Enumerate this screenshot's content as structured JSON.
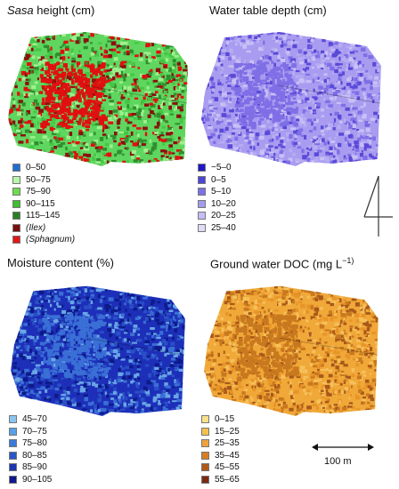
{
  "panels": [
    {
      "id": "sasa",
      "title_pre": "",
      "title_italic": "Sasa",
      "title_post": " height (cm)",
      "base_color": "#5fd65f",
      "patch_colors": [
        "#2f8f2f",
        "#9ef08e",
        "#e01010",
        "#43c743",
        "#8a1010"
      ],
      "legend": [
        {
          "label": "0–50",
          "color": "#1f6fd1",
          "italic": false
        },
        {
          "label": "50–75",
          "color": "#b6f7a8",
          "italic": false
        },
        {
          "label": "75–90",
          "color": "#6fdc4f",
          "italic": false
        },
        {
          "label": "90–115",
          "color": "#3fbf2f",
          "italic": false
        },
        {
          "label": "115–145",
          "color": "#2a7f24",
          "italic": false
        },
        {
          "label": "(Ilex)",
          "color": "#7a0f0f",
          "italic": true
        },
        {
          "label": "(Sphagnum)",
          "color": "#e01818",
          "italic": true
        }
      ]
    },
    {
      "id": "water-table",
      "title_pre": "Water table depth (cm)",
      "title_italic": "",
      "title_post": "",
      "base_color": "#a99cf0",
      "patch_colors": [
        "#7f6fe6",
        "#c8c0f6",
        "#5a4ad8",
        "#b6acf2"
      ],
      "legend": [
        {
          "label": "−5–0",
          "color": "#2216c8",
          "italic": false
        },
        {
          "label": "0–5",
          "color": "#4e44d6",
          "italic": false
        },
        {
          "label": "5–10",
          "color": "#7b72e4",
          "italic": false
        },
        {
          "label": "10–20",
          "color": "#a39cee",
          "italic": false
        },
        {
          "label": "20–25",
          "color": "#c3bef4",
          "italic": false
        },
        {
          "label": "25–40",
          "color": "#dedcf8",
          "italic": false
        }
      ]
    },
    {
      "id": "moisture",
      "title_pre": "Moisture content (%)",
      "title_italic": "",
      "title_post": "",
      "base_color": "#1d2fb8",
      "patch_colors": [
        "#3a6fd6",
        "#0c1a8a",
        "#6aa6e6",
        "#2a4fc8"
      ],
      "legend": [
        {
          "label": "45–70",
          "color": "#8cc4ee",
          "italic": false
        },
        {
          "label": "70–75",
          "color": "#5aa0e4",
          "italic": false
        },
        {
          "label": "75–80",
          "color": "#3a7ad8",
          "italic": false
        },
        {
          "label": "80–85",
          "color": "#2a56c6",
          "italic": false
        },
        {
          "label": "85–90",
          "color": "#1e36b0",
          "italic": false
        },
        {
          "label": "90–105",
          "color": "#10188a",
          "italic": false
        }
      ]
    },
    {
      "id": "doc",
      "title_pre": "Ground water DOC (mg L",
      "title_italic": "",
      "title_post": "−1)",
      "base_color": "#f0a838",
      "patch_colors": [
        "#c8781e",
        "#f6c05a",
        "#a8581a",
        "#e89428"
      ],
      "legend": [
        {
          "label": "0–15",
          "color": "#fce08a",
          "italic": false
        },
        {
          "label": "15–25",
          "color": "#f6c04c",
          "italic": false
        },
        {
          "label": "25–35",
          "color": "#eea43a",
          "italic": false
        },
        {
          "label": "35–45",
          "color": "#d67e24",
          "italic": false
        },
        {
          "label": "45–55",
          "color": "#b05a18",
          "italic": false
        },
        {
          "label": "55–65",
          "color": "#7a2a10",
          "italic": false
        }
      ]
    }
  ],
  "scale_bar_label": "100 m"
}
